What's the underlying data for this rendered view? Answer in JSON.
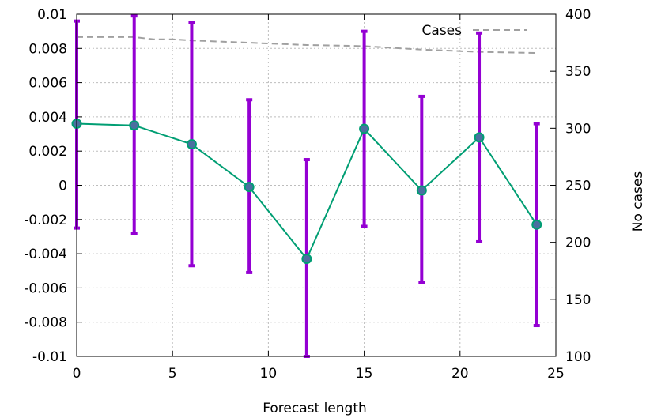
{
  "chart_data": {
    "type": "line",
    "title": "",
    "xlabel": "Forecast length",
    "ylabel": "",
    "y2label": "No cases",
    "xlim": [
      0,
      25
    ],
    "ylim": [
      -0.01,
      0.01
    ],
    "y2lim": [
      100,
      400
    ],
    "grid": true,
    "x_ticks": [
      "0",
      "5",
      "10",
      "15",
      "20",
      "25"
    ],
    "y_ticks": [
      "-0.01",
      "-0.008",
      "-0.006",
      "-0.004",
      "-0.002",
      "0",
      "0.002",
      "0.004",
      "0.006",
      "0.008",
      "0.01"
    ],
    "y2_ticks": [
      "100",
      "150",
      "200",
      "250",
      "300",
      "350",
      "400"
    ],
    "legend": {
      "position": "top-right",
      "entries": [
        "Cases"
      ]
    },
    "series": [
      {
        "axis": "left",
        "style": "line-points-errorbars",
        "color": "#009e73",
        "marker_color": "#4b6fa0",
        "errorbar_color": "#9400d3",
        "x": [
          0,
          3,
          6,
          9,
          12,
          15,
          18,
          21,
          24
        ],
        "y": [
          0.0036,
          0.0035,
          0.0024,
          -0.0001,
          -0.0043,
          0.0033,
          -0.0003,
          0.0028,
          -0.0023
        ],
        "y_low": [
          -0.0025,
          -0.0028,
          -0.0047,
          -0.0051,
          -0.01,
          -0.0024,
          -0.0057,
          -0.0033,
          -0.0082
        ],
        "y_high": [
          0.0096,
          0.0099,
          0.0095,
          0.005,
          0.0015,
          0.009,
          0.0052,
          0.0089,
          0.0036
        ]
      },
      {
        "name": "Cases",
        "axis": "right",
        "style": "dashed",
        "color": "#a0a0a0",
        "x": [
          0,
          3,
          4,
          5,
          6,
          9,
          12,
          15,
          18,
          21,
          24
        ],
        "y": [
          380,
          380,
          378,
          378,
          377,
          375,
          373,
          372,
          369,
          367,
          366
        ]
      }
    ]
  }
}
